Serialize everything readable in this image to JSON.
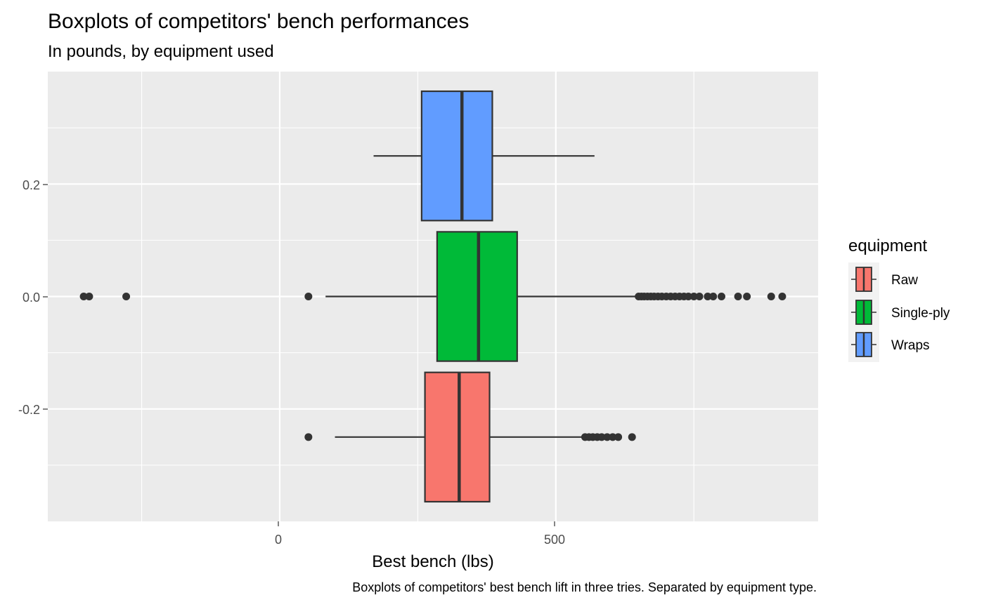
{
  "chart_data": {
    "type": "boxplot",
    "orientation": "horizontal",
    "title": "Boxplots of competitors' bench performances",
    "subtitle": "In pounds, by equipment used",
    "xlabel": "Best bench (lbs)",
    "caption": "Boxplots of competitors' best bench lift in three tries. Separated by equipment type.",
    "x_ticks": [
      "0",
      "500"
    ],
    "y_ticks": [
      "0.2",
      "0.0",
      "-0.2"
    ],
    "xlim": [
      -420,
      975
    ],
    "ylim": [
      -0.4,
      0.4
    ],
    "background": "#ebebeb",
    "grid": true,
    "legend": {
      "title": "equipment",
      "position": "right",
      "entries": [
        {
          "name": "Raw",
          "color": "#F8766D"
        },
        {
          "name": "Single-ply",
          "color": "#00BA38"
        },
        {
          "name": "Wraps",
          "color": "#619CFF"
        }
      ]
    },
    "series": [
      {
        "name": "Raw",
        "color": "#F8766D",
        "y": -0.25,
        "ymin": -0.365,
        "ymax": -0.135,
        "whisker_low": 100,
        "q1": 263,
        "median": 325,
        "q3": 380,
        "whisker_high": 555,
        "outliers": [
          52,
          553,
          560,
          567,
          575,
          583,
          593,
          603,
          613,
          638
        ]
      },
      {
        "name": "Single-ply",
        "color": "#00BA38",
        "y": 0.0,
        "ymin": -0.115,
        "ymax": 0.115,
        "whisker_low": 83,
        "q1": 285,
        "median": 360,
        "q3": 430,
        "whisker_high": 650,
        "outliers": [
          -355,
          -345,
          -278,
          52,
          650,
          655,
          660,
          666,
          672,
          678,
          685,
          692,
          700,
          708,
          716,
          724,
          732,
          740,
          750,
          760,
          775,
          785,
          800,
          830,
          846,
          890,
          910
        ]
      },
      {
        "name": "Wraps",
        "color": "#619CFF",
        "y": 0.25,
        "ymin": 0.135,
        "ymax": 0.365,
        "whisker_low": 170,
        "q1": 257,
        "median": 330,
        "q3": 385,
        "whisker_high": 570,
        "outliers": []
      }
    ]
  }
}
